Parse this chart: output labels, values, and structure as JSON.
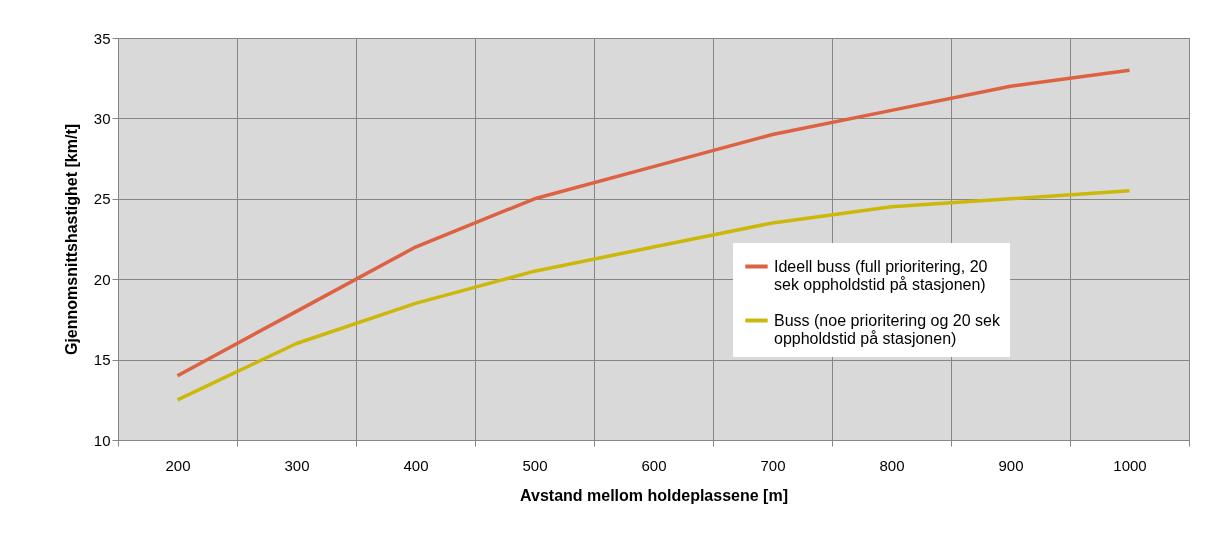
{
  "chart_data": {
    "type": "line",
    "xlabel": "Avstand mellom holdeplassene  [m]",
    "ylabel": "Gjennomsnittshastighet [km/t]",
    "categories": [
      "200",
      "300",
      "400",
      "500",
      "600",
      "700",
      "800",
      "900",
      "1000"
    ],
    "series": [
      {
        "name": "Ideell buss (full prioritering, 20 sek oppholdstid på stasjonen)",
        "color": "#dc6241",
        "values": [
          14,
          18,
          22,
          25,
          27,
          29,
          30.5,
          32,
          33
        ]
      },
      {
        "name": "Buss (noe prioritering og 20 sek oppholdstid på stasjonen)",
        "color": "#cbb80a",
        "values": [
          12.5,
          16,
          18.5,
          20.5,
          22,
          23.5,
          24.5,
          25,
          25.5
        ]
      }
    ],
    "ylim": [
      10,
      35
    ],
    "yticks": [
      10,
      15,
      20,
      25,
      30,
      35
    ],
    "grid": true,
    "legend": "right",
    "marker": "none",
    "line_style": "solid"
  }
}
